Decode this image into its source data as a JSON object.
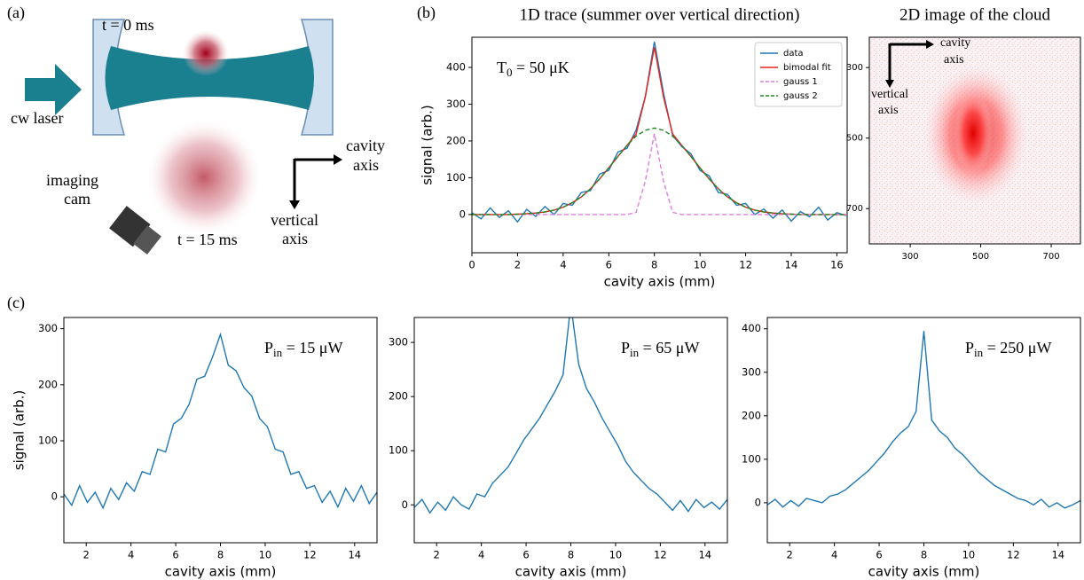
{
  "panel_labels": [
    "(a)",
    "(b)",
    "(c)"
  ],
  "diagram": {
    "t0": "t = 0 ms",
    "laser": "cw laser",
    "cavity_axis": [
      "cavity",
      "axis"
    ],
    "vertical_axis": [
      "vertical",
      "axis"
    ],
    "camera": [
      "imaging",
      "cam"
    ],
    "t15": "t = 15 ms"
  },
  "chart_data": [
    {
      "type": "line",
      "title": "1D trace (summer over vertical direction)",
      "xlabel": "cavity axis (mm)",
      "ylabel": "signal (arb.)",
      "annotation": {
        "base": "T",
        "sub": "0",
        "tail": " = 50 μK"
      },
      "legend": "upper right",
      "x": [
        0,
        0.4,
        0.8,
        1.2,
        1.6,
        2,
        2.4,
        2.8,
        3.2,
        3.6,
        4,
        4.4,
        4.8,
        5.2,
        5.6,
        6,
        6.4,
        6.8,
        7.2,
        7.6,
        8,
        8.4,
        8.8,
        9.2,
        9.6,
        10,
        10.4,
        10.8,
        11.2,
        11.6,
        12,
        12.4,
        12.8,
        13.2,
        13.6,
        14,
        14.4,
        14.8,
        15.2,
        15.6,
        16,
        16.4
      ],
      "xlim": [
        0,
        16.45
      ],
      "xticks": [
        0,
        2,
        4,
        6,
        8,
        10,
        12,
        14,
        16
      ],
      "ylim": [
        -104,
        482
      ],
      "yticks": [
        0,
        100,
        200,
        300,
        400
      ],
      "series": [
        {
          "name": "data",
          "color": "#1f77b4",
          "style": "solid",
          "values": [
            5,
            -12,
            18,
            -8,
            10,
            -20,
            14,
            -5,
            22,
            0,
            30,
            25,
            60,
            65,
            110,
            120,
            170,
            180,
            230,
            320,
            470,
            330,
            215,
            185,
            165,
            120,
            105,
            60,
            55,
            25,
            30,
            0,
            15,
            -10,
            12,
            -18,
            8,
            -6,
            20,
            -15,
            5,
            -3
          ]
        },
        {
          "name": "bimodal fit",
          "color": "#e8231d",
          "style": "solid",
          "values": [
            0,
            0,
            0,
            0,
            0,
            1,
            2,
            4,
            7,
            12,
            20,
            32,
            48,
            70,
            97,
            127,
            158,
            188,
            219,
            319,
            455,
            319,
            219,
            188,
            158,
            127,
            97,
            70,
            48,
            32,
            20,
            12,
            7,
            4,
            2,
            1,
            0,
            0,
            0,
            0,
            0,
            0
          ]
        },
        {
          "name": "gauss 1",
          "color": "#e27ce0",
          "style": "dashed",
          "values": [
            0,
            0,
            0,
            0,
            0,
            0,
            0,
            0,
            0,
            0,
            0,
            0,
            0,
            0,
            0,
            0,
            0,
            0,
            6,
            90,
            220,
            90,
            6,
            0,
            0,
            0,
            0,
            0,
            0,
            0,
            0,
            0,
            0,
            0,
            0,
            0,
            0,
            0,
            0,
            0,
            0,
            0
          ]
        },
        {
          "name": "gauss 2",
          "color": "#1e8a1e",
          "style": "dashed",
          "values": [
            0,
            0,
            0,
            0,
            0,
            1,
            2,
            4,
            7,
            12,
            20,
            32,
            48,
            70,
            97,
            127,
            158,
            188,
            213,
            229,
            235,
            229,
            213,
            188,
            158,
            127,
            97,
            70,
            48,
            32,
            20,
            12,
            7,
            4,
            2,
            1,
            0,
            0,
            0,
            0,
            0,
            0
          ]
        }
      ]
    },
    {
      "type": "image",
      "title": "2D image of the cloud",
      "annotations": [
        [
          "cavity",
          "axis"
        ],
        [
          "vertical",
          "axis"
        ]
      ],
      "xlim": [
        184,
        783
      ],
      "xticks": [
        300,
        500,
        700
      ],
      "ylim": [
        214,
        800
      ],
      "y_inverted": true,
      "yticks": [
        300,
        500,
        700
      ]
    },
    {
      "type": "line",
      "xlabel": "cavity axis (mm)",
      "ylabel": "signal (arb.)",
      "annotation": {
        "base": "P",
        "sub": "in",
        "tail": " = 15 μW"
      },
      "x": [
        1,
        1.35,
        1.7,
        2.05,
        2.4,
        2.75,
        3.1,
        3.45,
        3.8,
        4.15,
        4.5,
        4.85,
        5.2,
        5.55,
        5.9,
        6.25,
        6.6,
        6.95,
        7.3,
        7.65,
        8,
        8.35,
        8.7,
        9.05,
        9.4,
        9.75,
        10.1,
        10.45,
        10.8,
        11.15,
        11.5,
        11.85,
        12.2,
        12.55,
        12.9,
        13.25,
        13.6,
        13.95,
        14.3,
        14.65,
        15
      ],
      "xlim": [
        1,
        15
      ],
      "xticks": [
        2,
        4,
        6,
        8,
        10,
        12,
        14
      ],
      "ylim": [
        -82,
        320
      ],
      "yticks": [
        0,
        100,
        200,
        300
      ],
      "series": [
        {
          "color": "#1f77b4",
          "style": "solid",
          "values": [
            5,
            -15,
            20,
            -10,
            8,
            -20,
            15,
            -5,
            25,
            10,
            45,
            40,
            85,
            80,
            130,
            140,
            165,
            210,
            215,
            250,
            290,
            235,
            225,
            195,
            180,
            140,
            125,
            85,
            80,
            40,
            45,
            15,
            20,
            -10,
            10,
            -18,
            15,
            -8,
            20,
            -12,
            8
          ]
        }
      ]
    },
    {
      "type": "line",
      "xlabel": "cavity axis (mm)",
      "annotation": {
        "base": "P",
        "sub": "in",
        "tail": " = 65 μW"
      },
      "x": [
        1,
        1.35,
        1.7,
        2.05,
        2.4,
        2.75,
        3.1,
        3.45,
        3.8,
        4.15,
        4.5,
        4.85,
        5.2,
        5.55,
        5.9,
        6.25,
        6.6,
        6.95,
        7.3,
        7.65,
        8,
        8.35,
        8.7,
        9.05,
        9.4,
        9.75,
        10.1,
        10.45,
        10.8,
        11.15,
        11.5,
        11.85,
        12.2,
        12.55,
        12.9,
        13.25,
        13.6,
        13.95,
        14.3,
        14.65,
        15
      ],
      "xlim": [
        1,
        15
      ],
      "xticks": [
        2,
        4,
        6,
        8,
        10,
        12,
        14
      ],
      "ylim": [
        -70,
        346
      ],
      "yticks": [
        0,
        100,
        200,
        300
      ],
      "series": [
        {
          "color": "#1f77b4",
          "style": "solid",
          "values": [
            -5,
            10,
            -15,
            5,
            -10,
            15,
            0,
            -8,
            20,
            15,
            40,
            55,
            70,
            95,
            120,
            140,
            160,
            185,
            210,
            240,
            370,
            260,
            215,
            190,
            160,
            135,
            110,
            80,
            60,
            45,
            30,
            20,
            5,
            -10,
            8,
            -12,
            10,
            -5,
            5,
            -8,
            10
          ]
        }
      ]
    },
    {
      "type": "line",
      "xlabel": "cavity axis (mm)",
      "annotation": {
        "base": "P",
        "sub": "in",
        "tail": " = 250 μW"
      },
      "x": [
        1,
        1.35,
        1.7,
        2.05,
        2.4,
        2.75,
        3.1,
        3.45,
        3.8,
        4.15,
        4.5,
        4.85,
        5.2,
        5.55,
        5.9,
        6.25,
        6.6,
        6.95,
        7.3,
        7.65,
        8,
        8.35,
        8.7,
        9.05,
        9.4,
        9.75,
        10.1,
        10.45,
        10.8,
        11.15,
        11.5,
        11.85,
        12.2,
        12.55,
        12.9,
        13.25,
        13.6,
        13.95,
        14.3,
        14.65,
        15
      ],
      "xlim": [
        1,
        15
      ],
      "xticks": [
        2,
        4,
        6,
        8,
        10,
        12,
        14
      ],
      "ylim": [
        -92,
        426
      ],
      "yticks": [
        0,
        100,
        200,
        300,
        400
      ],
      "series": [
        {
          "color": "#1f77b4",
          "style": "solid",
          "values": [
            -5,
            8,
            -10,
            5,
            -8,
            10,
            5,
            0,
            15,
            20,
            30,
            45,
            60,
            75,
            95,
            115,
            140,
            160,
            175,
            210,
            395,
            190,
            165,
            150,
            125,
            110,
            90,
            70,
            55,
            40,
            30,
            20,
            10,
            5,
            -5,
            8,
            -10,
            0,
            -12,
            -5,
            5
          ]
        }
      ]
    }
  ]
}
